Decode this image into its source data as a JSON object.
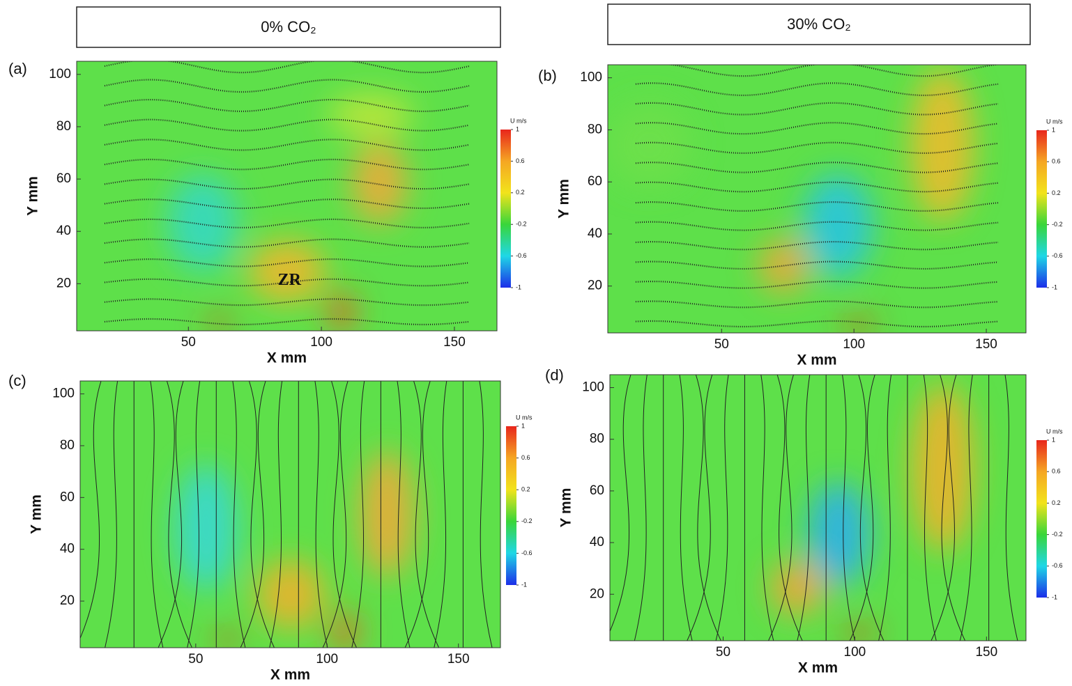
{
  "headers": [
    "0% CO₂",
    "30% CO₂"
  ],
  "chart_data": [
    {
      "type": "contour",
      "panel_label": "(a)",
      "xlabel": "X mm",
      "ylabel": "Y mm",
      "xlim": [
        8,
        166
      ],
      "ylim": [
        2,
        105
      ],
      "xticks": [
        50,
        100,
        150
      ],
      "yticks": [
        20,
        40,
        60,
        80,
        100
      ],
      "annotation": "ZR",
      "colorbar": {
        "title": "U m/s",
        "lim": [
          -1,
          1
        ],
        "ticks": [
          1,
          0.6,
          0.2,
          -0.2,
          -0.6,
          -1
        ],
        "colormap": [
          "#e8261c",
          "#f5a623",
          "#f2e31b",
          "#39d63a",
          "#1fd7e6",
          "#1c2ee8"
        ]
      }
    },
    {
      "type": "contour",
      "panel_label": "(b)",
      "xlabel": "X mm",
      "ylabel": "Y mm",
      "xlim": [
        7,
        165
      ],
      "ylim": [
        2,
        105
      ],
      "xticks": [
        50,
        100,
        150
      ],
      "yticks": [
        20,
        40,
        60,
        80,
        100
      ],
      "colorbar": {
        "title": "U m/s",
        "lim": [
          -1,
          1
        ],
        "ticks": [
          1,
          0.6,
          0.2,
          -0.2,
          -0.6,
          -1
        ],
        "colormap": [
          "#e8261c",
          "#f5a623",
          "#f2e31b",
          "#39d63a",
          "#1fd7e6",
          "#1c2ee8"
        ]
      }
    },
    {
      "type": "contour",
      "panel_label": "(c)",
      "xlabel": "X mm",
      "ylabel": "Y mm",
      "xlim": [
        6,
        166
      ],
      "ylim": [
        2,
        105
      ],
      "xticks": [
        50,
        100,
        150
      ],
      "yticks": [
        20,
        40,
        60,
        80,
        100
      ],
      "colorbar": {
        "title": "U m/s",
        "lim": [
          -1,
          1
        ],
        "ticks": [
          1,
          0.6,
          0.2,
          -0.2,
          -0.6,
          -1
        ],
        "colormap": [
          "#e8261c",
          "#f5a623",
          "#f2e31b",
          "#39d63a",
          "#1fd7e6",
          "#1c2ee8"
        ]
      }
    },
    {
      "type": "contour",
      "panel_label": "(d)",
      "xlabel": "X mm",
      "ylabel": "Y mm",
      "xlim": [
        7,
        165
      ],
      "ylim": [
        2,
        105
      ],
      "xticks": [
        50,
        100,
        150
      ],
      "yticks": [
        20,
        40,
        60,
        80,
        100
      ],
      "colorbar": {
        "title": "U m/s",
        "lim": [
          -1,
          1
        ],
        "ticks": [
          1,
          0.6,
          0.2,
          -0.2,
          -0.6,
          -1
        ],
        "colormap": [
          "#e8261c",
          "#f5a623",
          "#f2e31b",
          "#39d63a",
          "#1fd7e6",
          "#1c2ee8"
        ]
      }
    }
  ]
}
